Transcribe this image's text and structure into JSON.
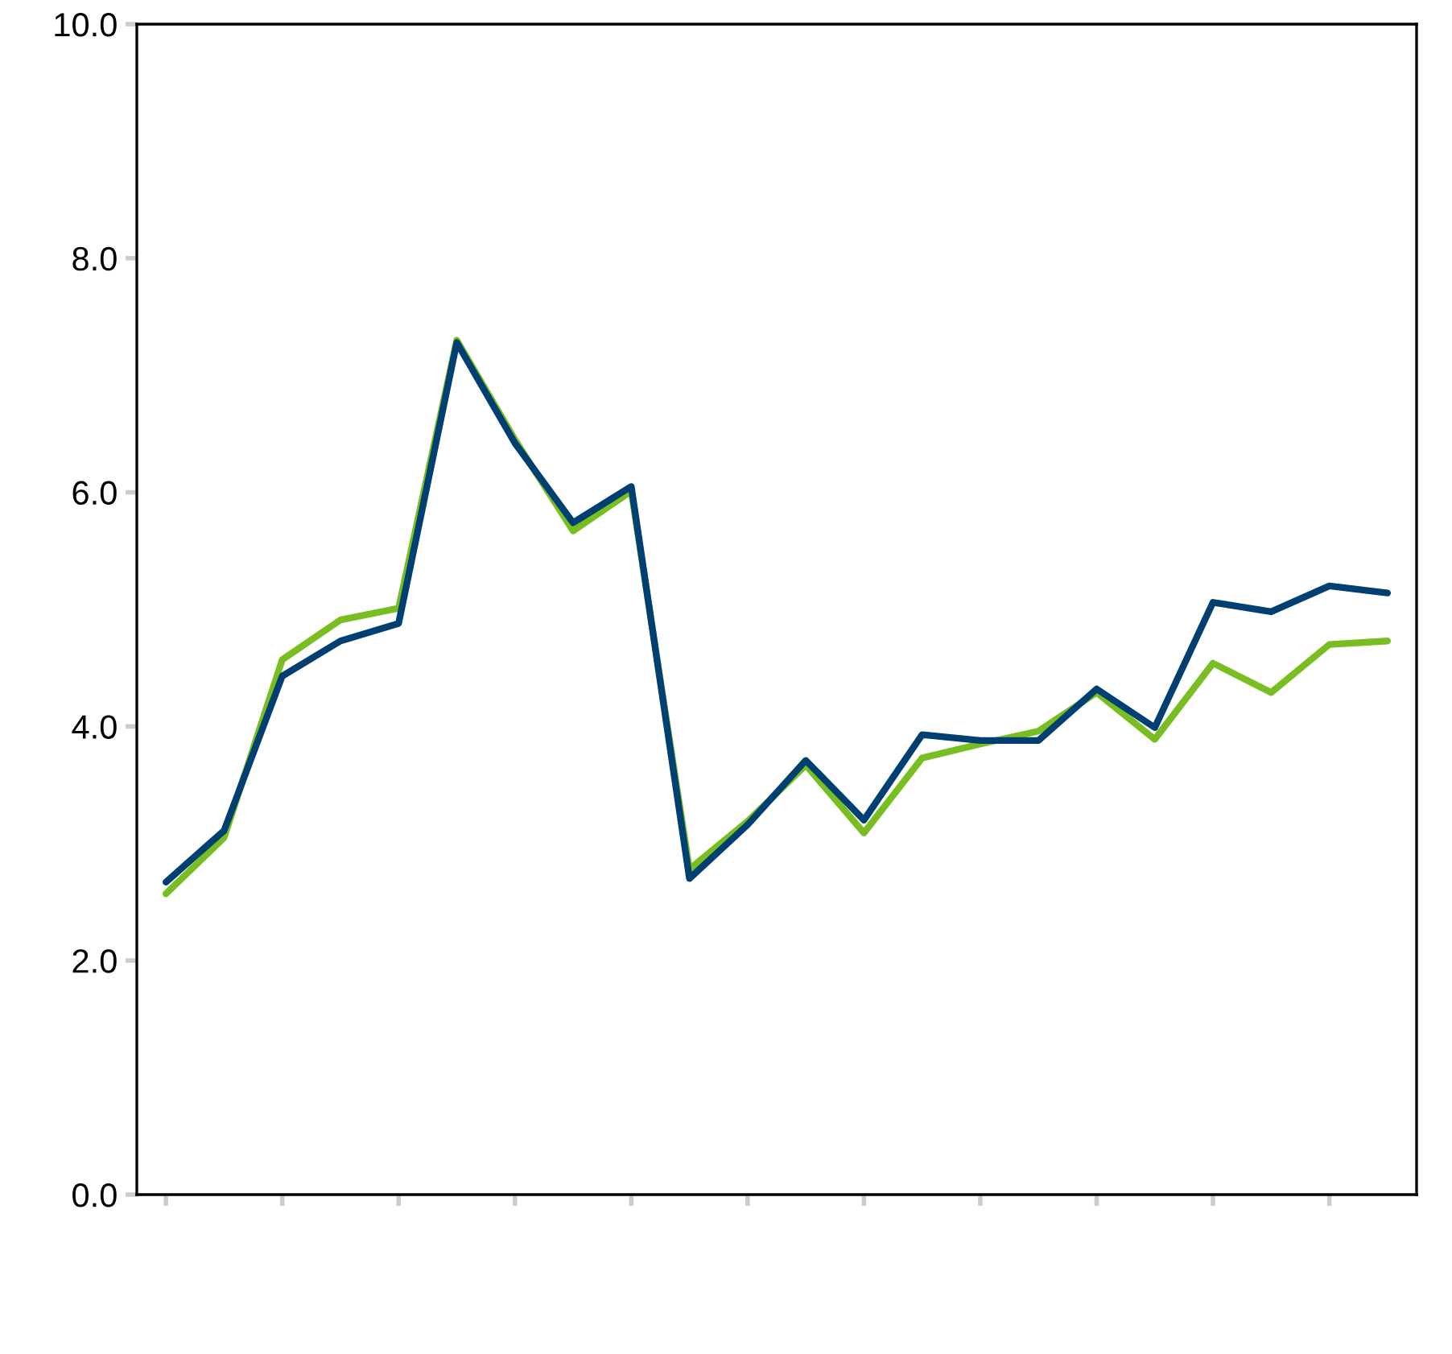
{
  "chart_data": {
    "type": "line",
    "categories": [
      null,
      null,
      null,
      null,
      null,
      null,
      null,
      null,
      null,
      null,
      null,
      null,
      null,
      null,
      null,
      null,
      null,
      null,
      null,
      null,
      null,
      null
    ],
    "series": [
      {
        "color": "#78be20",
        "values": [
          2.57,
          3.05,
          4.57,
          4.91,
          5.01,
          7.3,
          6.45,
          5.67,
          6.01,
          2.78,
          3.19,
          3.67,
          3.09,
          3.73,
          3.85,
          3.96,
          4.29,
          3.89,
          4.54,
          4.29,
          4.7,
          4.73
        ]
      },
      {
        "color": "#003f72",
        "values": [
          2.67,
          3.11,
          4.43,
          4.73,
          4.88,
          7.28,
          6.42,
          5.74,
          6.05,
          2.7,
          3.16,
          3.71,
          3.2,
          3.93,
          3.88,
          3.88,
          4.32,
          3.99,
          5.06,
          4.98,
          5.2,
          5.14
        ]
      }
    ],
    "ylim": [
      0,
      10
    ],
    "yticks": [
      {
        "value": 0,
        "label": "0.0"
      },
      {
        "value": 2,
        "label": "2.0"
      },
      {
        "value": 4,
        "label": "4.0"
      },
      {
        "value": 6,
        "label": "6.0"
      },
      {
        "value": 8,
        "label": "8.0"
      },
      {
        "value": 10,
        "label": "10.0"
      }
    ],
    "grid": false,
    "tick_labels": "y"
  }
}
